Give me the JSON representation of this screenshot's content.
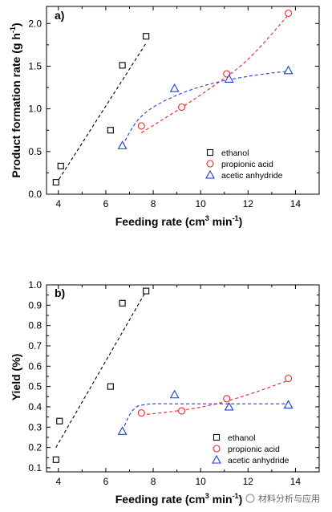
{
  "watermark": {
    "text": "材料分析与应用"
  },
  "chart_data": [
    {
      "type": "scatter",
      "panel_label": "a)",
      "xlabel": "Feeding rate (cm",
      "xlabel_sup": "3",
      "xlabel_mid": " min",
      "xlabel_sup2": "-1",
      "xlabel_end": ")",
      "ylabel": "Product formation rate (g h",
      "ylabel_sup": "-1",
      "ylabel_end": ")",
      "xlim": [
        3.5,
        15
      ],
      "ylim": [
        0,
        2.2
      ],
      "xticks": [
        "4",
        "6",
        "8",
        "10",
        "12",
        "14"
      ],
      "yticks": [
        "0.0",
        "0.5",
        "1.0",
        "1.5",
        "2.0"
      ],
      "legend_position": "bottom-right",
      "series": [
        {
          "name": "ethanol",
          "marker": "square",
          "color": "#000000",
          "x": [
            3.9,
            4.1,
            6.2,
            6.7,
            7.7
          ],
          "y": [
            0.14,
            0.33,
            0.75,
            1.51,
            1.85
          ],
          "fit": {
            "kind": "linear",
            "x": [
              3.9,
              7.7
            ],
            "y": [
              0.12,
              1.77
            ]
          }
        },
        {
          "name": "propionic acid",
          "marker": "circle",
          "color": "#e8262a",
          "x": [
            7.5,
            9.2,
            11.1,
            13.7
          ],
          "y": [
            0.8,
            1.02,
            1.41,
            2.12
          ],
          "fit": {
            "kind": "curve",
            "x": [
              7.5,
              9.0,
              10.5,
              12.0,
              13.7
            ],
            "y": [
              0.72,
              0.98,
              1.26,
              1.58,
              2.1
            ]
          }
        },
        {
          "name": "acetic anhydride",
          "marker": "triangle",
          "color": "#1f3ccf",
          "x": [
            6.7,
            8.9,
            11.2,
            13.7
          ],
          "y": [
            0.57,
            1.24,
            1.35,
            1.45
          ],
          "fit": {
            "kind": "curve",
            "x": [
              6.7,
              7.3,
              8.0,
              9.0,
              10.0,
              11.0,
              12.0,
              13.0,
              13.7
            ],
            "y": [
              0.57,
              0.85,
              1.02,
              1.16,
              1.26,
              1.33,
              1.38,
              1.42,
              1.44
            ]
          }
        }
      ]
    },
    {
      "type": "scatter",
      "panel_label": "b)",
      "xlabel": "Feeding rate (cm",
      "xlabel_sup": "3",
      "xlabel_mid": " min",
      "xlabel_sup2": "-1",
      "xlabel_end": ")",
      "ylabel": "Yield (%)",
      "xlim": [
        3.5,
        15
      ],
      "ylim": [
        0.08,
        1.0
      ],
      "xticks": [
        "4",
        "6",
        "8",
        "10",
        "12",
        "14"
      ],
      "yticks": [
        "0.1",
        "0.2",
        "0.3",
        "0.4",
        "0.5",
        "0.6",
        "0.7",
        "0.8",
        "0.9",
        "1.0"
      ],
      "legend_position": "bottom-right",
      "series": [
        {
          "name": "ethanol",
          "marker": "square",
          "color": "#000000",
          "x": [
            3.9,
            4.05,
            6.2,
            6.7,
            7.7
          ],
          "y": [
            0.14,
            0.33,
            0.5,
            0.91,
            0.97
          ],
          "fit": {
            "kind": "linear",
            "x": [
              3.9,
              7.7
            ],
            "y": [
              0.2,
              0.97
            ]
          }
        },
        {
          "name": "propionic acid",
          "marker": "circle",
          "color": "#e8262a",
          "x": [
            7.5,
            9.2,
            11.1,
            13.7
          ],
          "y": [
            0.37,
            0.38,
            0.44,
            0.54
          ],
          "fit": {
            "kind": "curve",
            "x": [
              7.5,
              9.0,
              10.5,
              12.0,
              13.7
            ],
            "y": [
              0.36,
              0.38,
              0.41,
              0.46,
              0.53
            ]
          }
        },
        {
          "name": "acetic anhydride",
          "marker": "triangle",
          "color": "#1f3ccf",
          "x": [
            6.7,
            8.9,
            11.2,
            13.7
          ],
          "y": [
            0.28,
            0.46,
            0.4,
            0.41
          ],
          "fit": {
            "kind": "curve",
            "x": [
              6.7,
              7.0,
              7.3,
              7.6,
              8.0,
              9.0,
              11.0,
              13.7
            ],
            "y": [
              0.28,
              0.36,
              0.4,
              0.41,
              0.415,
              0.415,
              0.415,
              0.415
            ]
          }
        }
      ]
    }
  ]
}
